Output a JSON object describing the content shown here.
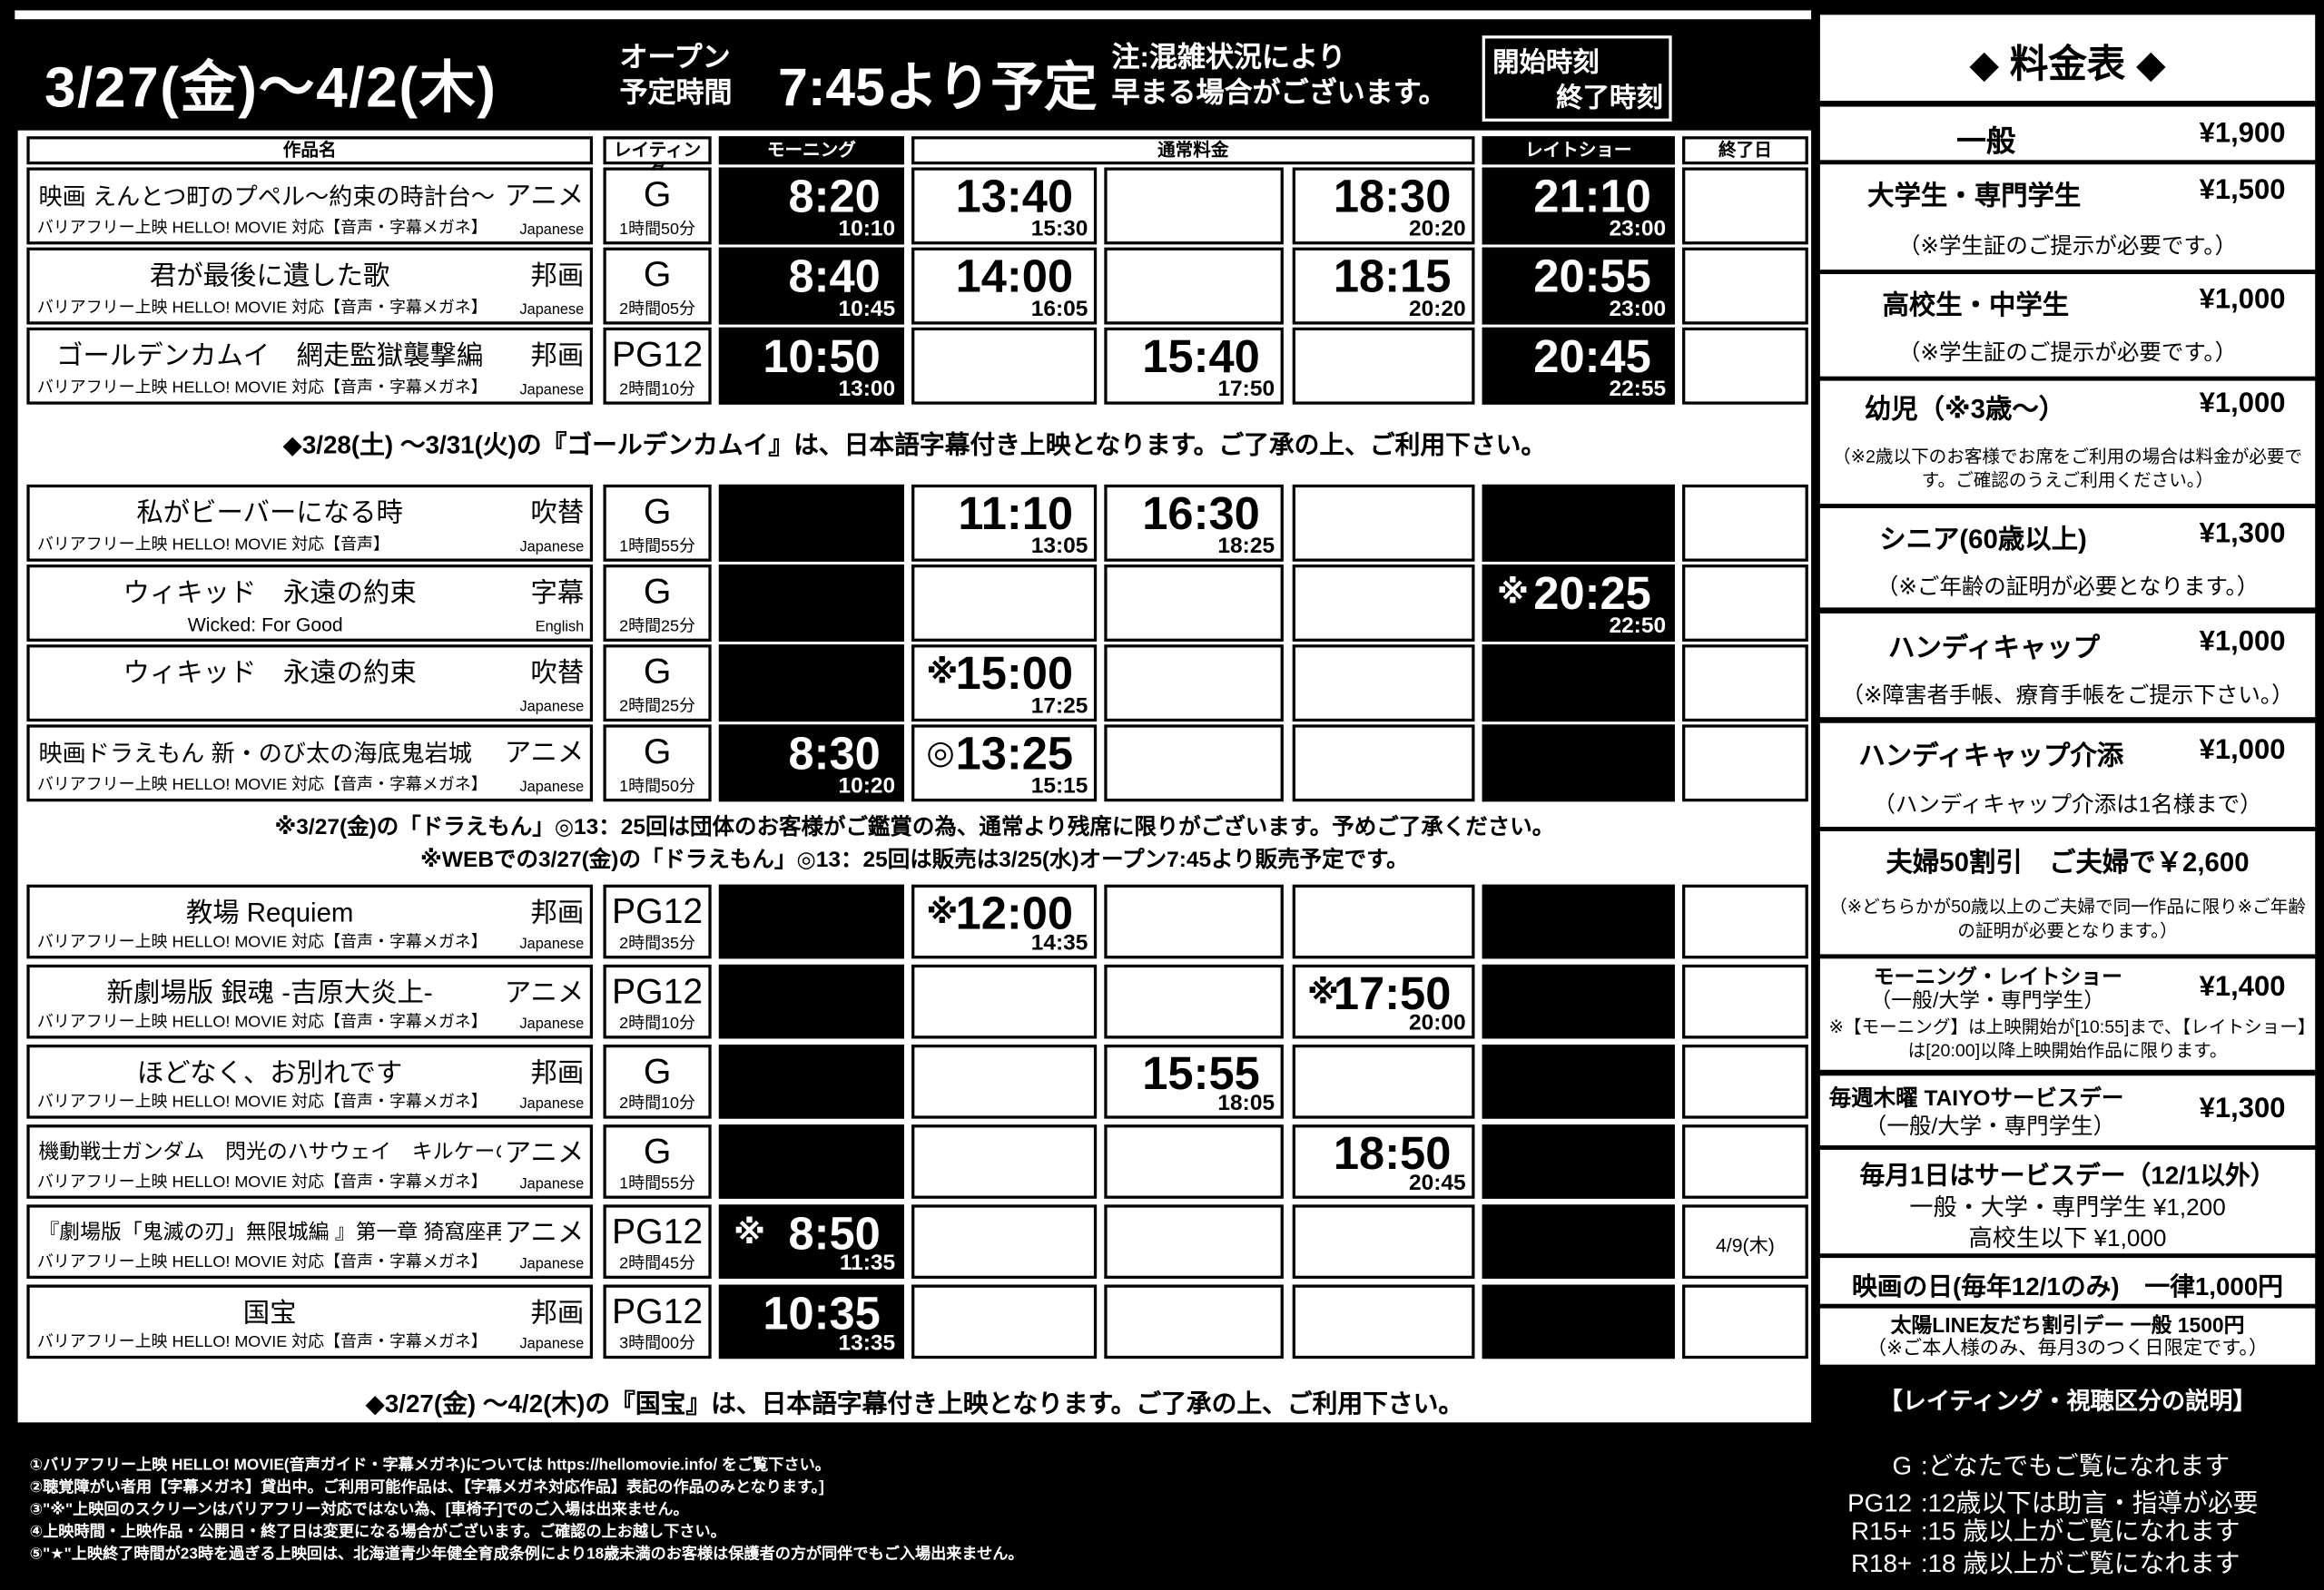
{
  "header": {
    "date_range": "3/27(金)～4/2(木)",
    "open_label_1": "オープン",
    "open_label_2": "予定時間",
    "open_time": "7:45より予定",
    "notice_1": "注:混雑状況により",
    "notice_2": "早まる場合がございます。",
    "legend_start": "開始時刻",
    "legend_end": "終了時刻"
  },
  "columns": {
    "title": "作品名",
    "rating": "レイティング",
    "morning": "モーニング",
    "normal": "通常料金",
    "late": "レイトショー",
    "end_date": "終了日"
  },
  "sections": [
    {
      "rows": [
        {
          "title": "映画 えんとつ町のプペル～約束の時計台～",
          "genre": "アニメ",
          "sub": "バリアフリー上映 HELLO! MOVIE 対応【音声・字幕メガネ】",
          "lang": "Japanese",
          "rating": "G",
          "duration": "1時間50分",
          "size": "mid",
          "times": [
            {
              "start": "8:20",
              "end": "10:10"
            },
            {
              "start": "13:40",
              "end": "15:30"
            },
            null,
            {
              "start": "18:30",
              "end": "20:20"
            },
            {
              "start": "21:10",
              "end": "23:00"
            }
          ],
          "end_date": ""
        },
        {
          "title": "君が最後に遺した歌",
          "genre": "邦画",
          "sub": "バリアフリー上映 HELLO! MOVIE 対応【音声・字幕メガネ】",
          "lang": "Japanese",
          "rating": "G",
          "duration": "2時間05分",
          "times": [
            {
              "start": "8:40",
              "end": "10:45"
            },
            {
              "start": "14:00",
              "end": "16:05"
            },
            null,
            {
              "start": "18:15",
              "end": "20:20"
            },
            {
              "start": "20:55",
              "end": "23:00"
            }
          ],
          "end_date": ""
        },
        {
          "title": "ゴールデンカムイ　網走監獄襲撃編",
          "genre": "邦画",
          "sub": "バリアフリー上映 HELLO! MOVIE 対応【音声・字幕メガネ】",
          "lang": "Japanese",
          "rating": "PG12",
          "duration": "2時間10分",
          "times": [
            {
              "start": "10:50",
              "end": "13:00"
            },
            null,
            {
              "start": "15:40",
              "end": "17:50"
            },
            null,
            {
              "start": "20:45",
              "end": "22:55"
            }
          ],
          "end_date": ""
        }
      ],
      "notes": [
        "◆3/28(土) ～3/31(火)の『ゴールデンカムイ』は、日本語字幕付き上映となります。ご了承の上、ご利用下さい。"
      ]
    },
    {
      "rows": [
        {
          "title": "私がビーバーになる時",
          "genre": "吹替",
          "sub": "バリアフリー上映 HELLO! MOVIE 対応【音声】",
          "lang": "Japanese",
          "rating": "G",
          "duration": "1時間55分",
          "times": [
            null,
            {
              "start": "11:10",
              "end": "13:05"
            },
            {
              "start": "16:30",
              "end": "18:25"
            },
            null,
            null
          ],
          "end_date": ""
        },
        {
          "title": "ウィキッド　永遠の約束",
          "genre": "字幕",
          "sub": "Wicked: For Good",
          "sub_center": true,
          "lang": "English",
          "rating": "G",
          "duration": "2時間25分",
          "times": [
            null,
            null,
            null,
            null,
            {
              "mark": "※",
              "start": "20:25",
              "end": "22:50"
            }
          ],
          "end_date": ""
        },
        {
          "title": "ウィキッド　永遠の約束",
          "genre": "吹替",
          "sub": "",
          "lang": "Japanese",
          "rating": "G",
          "duration": "2時間25分",
          "times": [
            null,
            {
              "mark": "※",
              "start": "15:00",
              "end": "17:25"
            },
            null,
            null,
            null
          ],
          "end_date": ""
        },
        {
          "title": "映画ドラえもん 新・のび太の海底鬼岩城",
          "genre": "アニメ",
          "sub": "バリアフリー上映 HELLO! MOVIE 対応【音声・字幕メガネ】",
          "lang": "Japanese",
          "rating": "G",
          "duration": "1時間50分",
          "size": "mid",
          "times": [
            {
              "start": "8:30",
              "end": "10:20"
            },
            {
              "mark": "◎",
              "start": "13:25",
              "end": "15:15"
            },
            null,
            null,
            null
          ],
          "end_date": ""
        }
      ],
      "notes": [
        "※3/27(金)の「ドラえもん」◎13：25回は団体のお客様がご鑑賞の為、通常より残席に限りがございます。予めご了承ください。",
        "※WEBでの3/27(金)の「ドラえもん」◎13：25回は販売は3/25(水)オープン7:45より販売予定です。"
      ]
    },
    {
      "rows": [
        {
          "title": "教場 Requiem",
          "genre": "邦画",
          "sub": "バリアフリー上映 HELLO! MOVIE 対応【音声・字幕メガネ】",
          "lang": "Japanese",
          "rating": "PG12",
          "duration": "2時間35分",
          "times": [
            null,
            {
              "mark": "※",
              "start": "12:00",
              "end": "14:35"
            },
            null,
            null,
            null
          ],
          "end_date": ""
        },
        {
          "title": "新劇場版 銀魂 -吉原大炎上-",
          "genre": "アニメ",
          "sub": "バリアフリー上映 HELLO! MOVIE 対応【音声・字幕メガネ】",
          "lang": "Japanese",
          "rating": "PG12",
          "duration": "2時間10分",
          "times": [
            null,
            null,
            null,
            {
              "mark": "※",
              "start": "17:50",
              "end": "20:00"
            },
            null
          ],
          "end_date": ""
        },
        {
          "title": "ほどなく、お別れです",
          "genre": "邦画",
          "sub": "バリアフリー上映 HELLO! MOVIE 対応【音声・字幕メガネ】",
          "lang": "Japanese",
          "rating": "G",
          "duration": "2時間10分",
          "times": [
            null,
            null,
            {
              "start": "15:55",
              "end": "18:05"
            },
            null,
            null
          ],
          "end_date": ""
        },
        {
          "title": "機動戦士ガンダム　閃光のハサウェイ　キルケーの魔女",
          "genre": "アニメ",
          "sub": "バリアフリー上映 HELLO! MOVIE 対応【音声・字幕メガネ】",
          "lang": "Japanese",
          "rating": "G",
          "duration": "1時間55分",
          "size": "small",
          "times": [
            null,
            null,
            null,
            {
              "start": "18:50",
              "end": "20:45"
            },
            null
          ],
          "end_date": ""
        },
        {
          "title": "『劇場版「鬼滅の刃」無限城編 』第一章 猗窩座再来",
          "genre": "アニメ",
          "sub": "バリアフリー上映 HELLO! MOVIE 対応【音声・字幕メガネ】",
          "lang": "Japanese",
          "rating": "PG12",
          "duration": "2時間45分",
          "size": "small",
          "times": [
            {
              "mark": "※",
              "start": "8:50",
              "end": "11:35"
            },
            null,
            null,
            null,
            null
          ],
          "end_date": "4/9(木)"
        },
        {
          "title": "国宝",
          "genre": "邦画",
          "sub": "バリアフリー上映 HELLO! MOVIE 対応【音声・字幕メガネ】",
          "lang": "Japanese",
          "rating": "PG12",
          "duration": "3時間00分",
          "times": [
            {
              "start": "10:35",
              "end": "13:35"
            },
            null,
            null,
            null,
            null
          ],
          "end_date": ""
        }
      ],
      "notes": [
        "◆3/27(金) ～4/2(木)の『国宝』は、日本語字幕付き上映となります。ご了承の上、ご利用下さい。"
      ]
    }
  ],
  "footer_notes": [
    "①バリアフリー上映 HELLO! MOVIE(音声ガイド・字幕メガネ)については https://hellomovie.info/ をご覧下さい。",
    "②聴覚障がい者用【字幕メガネ】貸出中。ご利用可能作品は、【字幕メガネ対応作品】表記の作品のみとなります。]",
    "③\"※\"上映回のスクリーンはバリアフリー対応ではない為、[車椅子]でのご入場は出来ません。",
    "④上映時間・上映作品・公開日・終了日は変更になる場合がございます。ご確認の上お越し下さい。",
    "⑤\"★\"上映終了時間が23時を過ぎる上映回は、北海道青少年健全育成条例により18歳未満のお客様は保護者の方が同伴でもご入場出来ません。"
  ],
  "pricing": {
    "title": "◆ 料金表 ◆",
    "general": {
      "label": "一般",
      "price": "¥1,900"
    },
    "university": {
      "label": "大学生・専門学生",
      "price": "¥1,500",
      "note": "（※学生証のご提示が必要です。）"
    },
    "highschool": {
      "label": "高校生・中学生",
      "price": "¥1,000",
      "note": "（※学生証のご提示が必要です。）"
    },
    "child": {
      "label": "幼児（※3歳～）",
      "price": "¥1,000",
      "note": "（※2歳以下のお客様でお席をご利用の場合は料金が必要です。ご確認のうえご利用ください。）"
    },
    "senior": {
      "label": "シニア(60歳以上)",
      "price": "¥1,300",
      "note": "（※ご年齢の証明が必要となります。）"
    },
    "handicap": {
      "label": "ハンディキャップ",
      "price": "¥1,000",
      "note": "（※障害者手帳、療育手帳をご提示下さい。）"
    },
    "handicap_helper": {
      "label": "ハンディキャップ介添",
      "price": "¥1,000",
      "note": "（ハンディキャップ介添は1名様まで）"
    },
    "couple": {
      "label": "夫婦50割引　ご夫婦で￥2,600",
      "note": "（※どちらかが50歳以上のご夫婦で同一作品に限り※ご年齢の証明が必要となります。）"
    },
    "morning_late": {
      "label": "モーニング・レイトショー",
      "sub": "（一般/大学・専門学生）",
      "price": "¥1,400",
      "note": "※【モーニング】は上映開始が[10:55]まで、【レイトショー】は[20:00]以降上映開始作品に限ります。"
    },
    "thursday": {
      "label": "毎週木曜 TAIYOサービスデー",
      "sub": "（一般/大学・専門学生）",
      "price": "¥1,300"
    },
    "first_day": {
      "label": "毎月1日はサービスデー（12/1以外）",
      "line1": "一般・大学・専門学生 ¥1,200",
      "line2": "高校生以下 ¥1,000"
    },
    "movie_day": {
      "label": "映画の日(毎年12/1のみ)　一律1,000円"
    },
    "line_day": {
      "label": "太陽LINE友だち割引デー 一般 1500円",
      "note": "（※ご本人様のみ、毎月3のつく日限定です。）"
    }
  },
  "rating_legend": {
    "title": "【レイティング・視聴区分の説明】",
    "items": [
      {
        "code": "G",
        "desc": ":どなたでもご覧になれます"
      },
      {
        "code": "PG12",
        "desc": ":12歳以下は助言・指導が必要"
      },
      {
        "code": "R15+",
        "desc": ":15 歳以上がご覧になれます"
      },
      {
        "code": "R18+",
        "desc": ":18 歳以上がご覧になれます"
      }
    ]
  }
}
